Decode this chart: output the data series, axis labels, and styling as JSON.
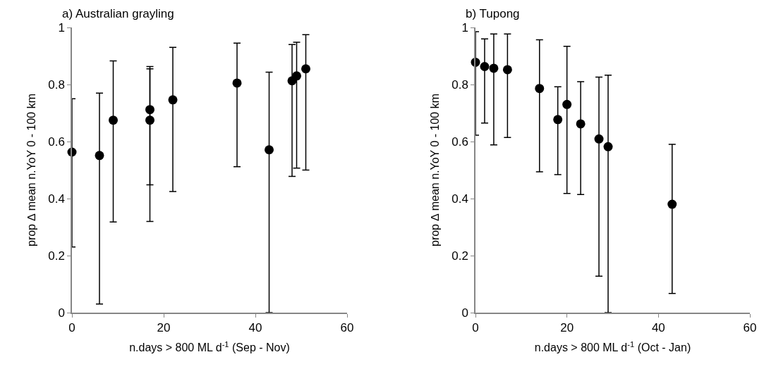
{
  "chart_data": [
    {
      "type": "scatter",
      "title": "a) Australian grayling",
      "xlabel": "n.days > 800 ML d$^{-1}$ (Sep - Nov)",
      "ylabel": "prop ∆ mean n.YoY 0 - 100 km",
      "x": [
        0,
        6,
        9,
        17,
        17,
        22,
        36,
        43,
        48,
        49,
        51
      ],
      "series": [
        {
          "color": "#000000",
          "values": [
            0.563,
            0.551,
            0.675,
            0.712,
            0.675,
            0.746,
            0.805,
            0.571,
            0.813,
            0.83,
            0.855
          ],
          "errors": [
            [
              0.23,
              0.75
            ],
            [
              0.03,
              0.77
            ],
            [
              0.318,
              0.883
            ],
            [
              0.448,
              0.863
            ],
            [
              0.32,
              0.855
            ],
            [
              0.425,
              0.93
            ],
            [
              0.512,
              0.945
            ],
            [
              0,
              0.843
            ],
            [
              0.478,
              0.94
            ],
            [
              0.507,
              0.948
            ],
            [
              0.5,
              0.975
            ]
          ]
        }
      ],
      "xlim": [
        0,
        60
      ],
      "xticks": [
        0,
        20,
        40,
        60
      ],
      "ylim": [
        0,
        1
      ],
      "yticks": [
        0,
        0.2,
        0.4,
        0.6,
        0.8,
        1
      ],
      "grid": false,
      "marker": "circle"
    },
    {
      "type": "scatter",
      "title": "b) Tupong",
      "xlabel": "n.days > 800 ML d$^{-1}$ (Oct - Jan)",
      "ylabel": "prop ∆ mean n.YoY 0 - 100 km",
      "x": [
        0,
        2,
        4,
        7,
        14,
        18,
        20,
        23,
        27,
        29,
        43
      ],
      "series": [
        {
          "color": "#000000",
          "values": [
            0.878,
            0.863,
            0.857,
            0.852,
            0.786,
            0.677,
            0.73,
            0.662,
            0.609,
            0.582,
            0.38
          ],
          "errors": [
            [
              0.622,
              0.985
            ],
            [
              0.665,
              0.96
            ],
            [
              0.588,
              0.977
            ],
            [
              0.614,
              0.977
            ],
            [
              0.494,
              0.957
            ],
            [
              0.484,
              0.792
            ],
            [
              0.418,
              0.934
            ],
            [
              0.414,
              0.81
            ],
            [
              0.128,
              0.826
            ],
            [
              0,
              0.833
            ],
            [
              0.067,
              0.59
            ]
          ]
        }
      ],
      "xlim": [
        0,
        60
      ],
      "xticks": [
        0,
        20,
        40,
        60
      ],
      "ylim": [
        0,
        1
      ],
      "yticks": [
        0,
        0.2,
        0.4,
        0.6,
        0.8,
        1
      ],
      "grid": false,
      "marker": "circle"
    }
  ]
}
